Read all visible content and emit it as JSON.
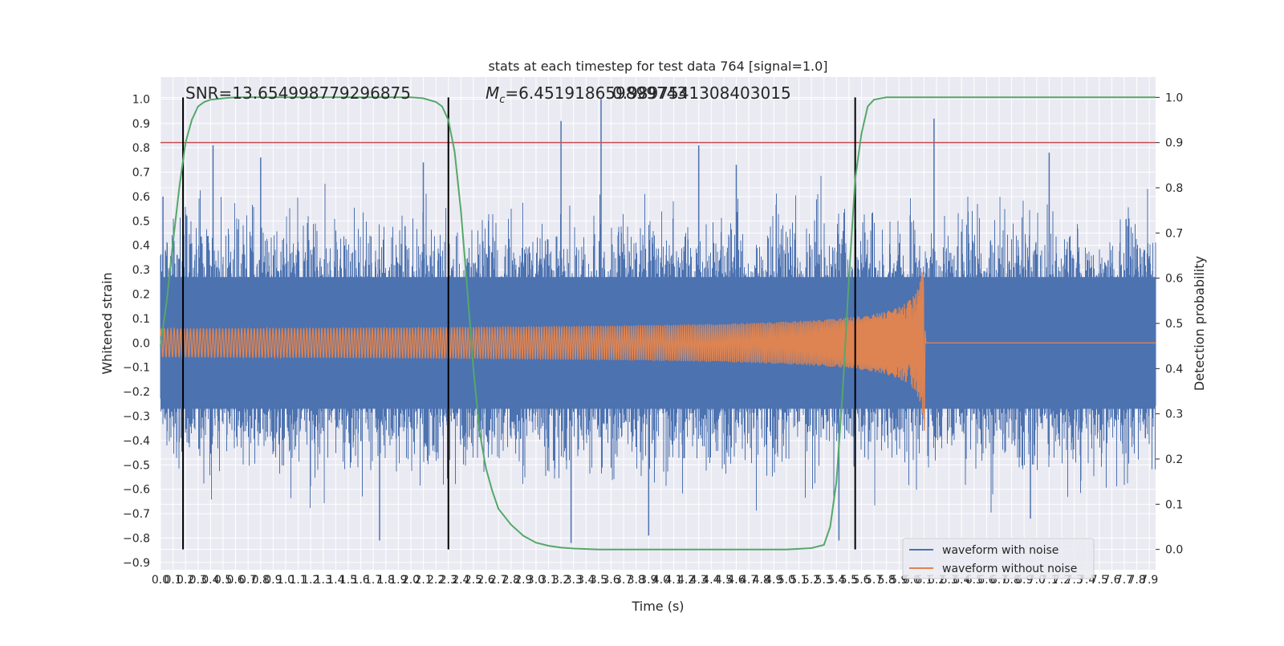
{
  "chart_data": {
    "type": "line",
    "title": "stats at each timestep for test data 764 [signal=1.0]",
    "xlabel": "Time (s)",
    "ylabel_left": "Whitened strain",
    "ylabel_right": "Detection probability",
    "xlim": [
      0.0,
      7.95
    ],
    "ylim_left": [
      -0.93,
      1.09
    ],
    "ylim_right": [
      -0.045,
      1.045
    ],
    "x_tick_step": 0.1,
    "x_tick_max": 7.9,
    "left_ticks": [
      -0.9,
      -0.8,
      -0.7,
      -0.6,
      -0.5,
      -0.4,
      -0.3,
      -0.2,
      -0.1,
      0.0,
      0.1,
      0.2,
      0.3,
      0.4,
      0.5,
      0.6,
      0.7,
      0.8,
      0.9,
      1.0
    ],
    "right_ticks": [
      0.0,
      0.1,
      0.2,
      0.3,
      0.4,
      0.5,
      0.6,
      0.7,
      0.8,
      0.9,
      1.0
    ],
    "grid": true,
    "legend_position": "bottom-right",
    "annotations": {
      "snr": "SNR=13.654998779296875",
      "mc_prefix": "M",
      "mc_sub": "c",
      "mc_value": "=6.451918659899743",
      "overlap_value": "0.9897541308403015"
    },
    "threshold": {
      "value": 0.9,
      "axis": "right",
      "color": "#c44e52"
    },
    "vertical_markers": [
      0.18,
      2.3,
      5.55
    ],
    "series": [
      {
        "name": "waveform with noise",
        "color": "#4c72b0",
        "axis": "left",
        "envelope_core": 0.27,
        "noise_std": 0.17,
        "peaks": [
          [
            0.02,
            0.6
          ],
          [
            0.42,
            0.81
          ],
          [
            0.8,
            0.76
          ],
          [
            1.75,
            -0.81
          ],
          [
            2.1,
            0.74
          ],
          [
            3.2,
            0.91
          ],
          [
            3.28,
            -0.82
          ],
          [
            3.52,
            1.0
          ],
          [
            3.9,
            -0.79
          ],
          [
            4.3,
            0.81
          ],
          [
            4.6,
            0.73
          ],
          [
            5.42,
            -0.81
          ],
          [
            6.18,
            0.92
          ],
          [
            6.95,
            -0.72
          ],
          [
            7.1,
            0.78
          ]
        ]
      },
      {
        "name": "waveform without noise",
        "color": "#dd8452",
        "axis": "left",
        "merger_time": 6.1,
        "start_amplitude": 0.03,
        "peak_amplitude": 0.29,
        "ringdown_min": -0.36
      },
      {
        "name": "detection probability",
        "color": "#55a868",
        "axis": "right",
        "x": [
          0.0,
          0.05,
          0.1,
          0.15,
          0.2,
          0.25,
          0.3,
          0.35,
          0.4,
          0.5,
          0.6,
          0.8,
          1.0,
          1.5,
          2.0,
          2.1,
          2.2,
          2.25,
          2.3,
          2.35,
          2.4,
          2.45,
          2.5,
          2.55,
          2.6,
          2.65,
          2.7,
          2.8,
          2.9,
          3.0,
          3.1,
          3.2,
          3.3,
          3.5,
          4.0,
          4.5,
          5.0,
          5.2,
          5.3,
          5.35,
          5.4,
          5.45,
          5.5,
          5.55,
          5.6,
          5.65,
          5.7,
          5.8,
          6.0,
          7.0,
          7.95
        ],
        "y": [
          0.45,
          0.55,
          0.68,
          0.8,
          0.9,
          0.95,
          0.98,
          0.99,
          0.995,
          0.998,
          1.0,
          1.0,
          1.0,
          1.0,
          1.0,
          0.998,
          0.99,
          0.98,
          0.95,
          0.88,
          0.75,
          0.58,
          0.4,
          0.26,
          0.18,
          0.13,
          0.09,
          0.055,
          0.03,
          0.015,
          0.008,
          0.004,
          0.002,
          0.0,
          0.0,
          0.0,
          0.0,
          0.003,
          0.01,
          0.05,
          0.15,
          0.35,
          0.6,
          0.82,
          0.92,
          0.98,
          0.995,
          1.0,
          1.0,
          1.0,
          1.0
        ]
      }
    ]
  }
}
